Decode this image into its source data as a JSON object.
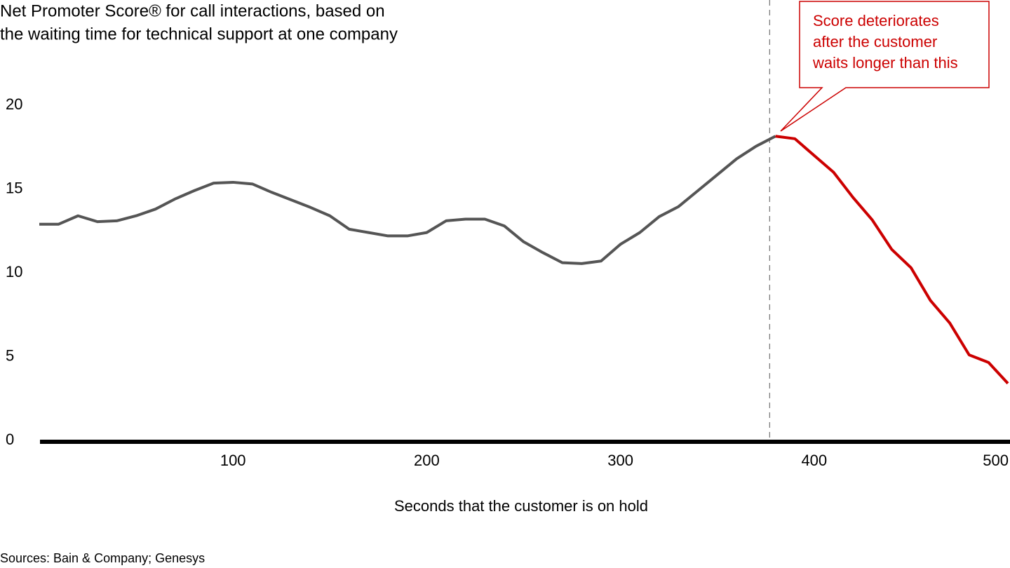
{
  "chart_data": {
    "type": "line",
    "title": [
      "Net Promoter Score® for call interactions, based on",
      "the waiting time for technical support at one company"
    ],
    "x_label": "Seconds that the customer is on hold",
    "source": "Sources: Bain & Company; Genesys",
    "x": [
      0,
      10,
      20,
      30,
      40,
      50,
      60,
      70,
      80,
      90,
      100,
      110,
      120,
      130,
      140,
      150,
      160,
      170,
      180,
      190,
      200,
      210,
      220,
      230,
      240,
      250,
      260,
      270,
      280,
      290,
      300,
      310,
      320,
      330,
      340,
      350,
      360,
      370,
      380,
      390,
      400,
      410,
      420,
      430,
      440,
      450,
      460,
      470,
      480,
      490,
      500
    ],
    "series": [
      {
        "color": "#555555",
        "values": [
          12.9,
          12.9,
          13.4,
          13.05,
          13.1,
          13.4,
          13.8,
          14.4,
          14.9,
          15.35,
          15.4,
          15.3,
          14.8,
          14.35,
          13.9,
          13.4,
          12.6,
          12.4,
          12.2,
          12.2,
          12.4,
          13.1,
          13.2,
          13.2,
          12.8,
          11.85,
          11.2,
          10.6,
          10.55,
          10.7,
          11.7,
          12.4,
          13.35,
          13.95,
          14.9,
          15.85,
          16.8,
          17.55,
          18.15,
          null,
          null,
          null,
          null,
          null,
          null,
          null,
          null,
          null,
          null,
          null,
          null
        ]
      },
      {
        "color": "#cc0000",
        "values": [
          null,
          null,
          null,
          null,
          null,
          null,
          null,
          null,
          null,
          null,
          null,
          null,
          null,
          null,
          null,
          null,
          null,
          null,
          null,
          null,
          null,
          null,
          null,
          null,
          null,
          null,
          null,
          null,
          null,
          null,
          null,
          null,
          null,
          null,
          null,
          null,
          null,
          null,
          18.15,
          18.0,
          17.0,
          16.0,
          14.5,
          13.15,
          11.4,
          10.3,
          8.35,
          7.0,
          5.1,
          4.65,
          3.4
        ]
      }
    ],
    "xlim": [
      0,
      500
    ],
    "xticks": [
      100,
      200,
      300,
      400,
      500
    ],
    "ylim": [
      0,
      20
    ],
    "yticks": [
      0,
      5,
      10,
      15,
      20
    ],
    "grid": false,
    "annotation": {
      "text": [
        "Score deteriorates",
        "after the customer",
        "waits longer than this"
      ],
      "x": 377,
      "color": "#cc0000"
    }
  }
}
